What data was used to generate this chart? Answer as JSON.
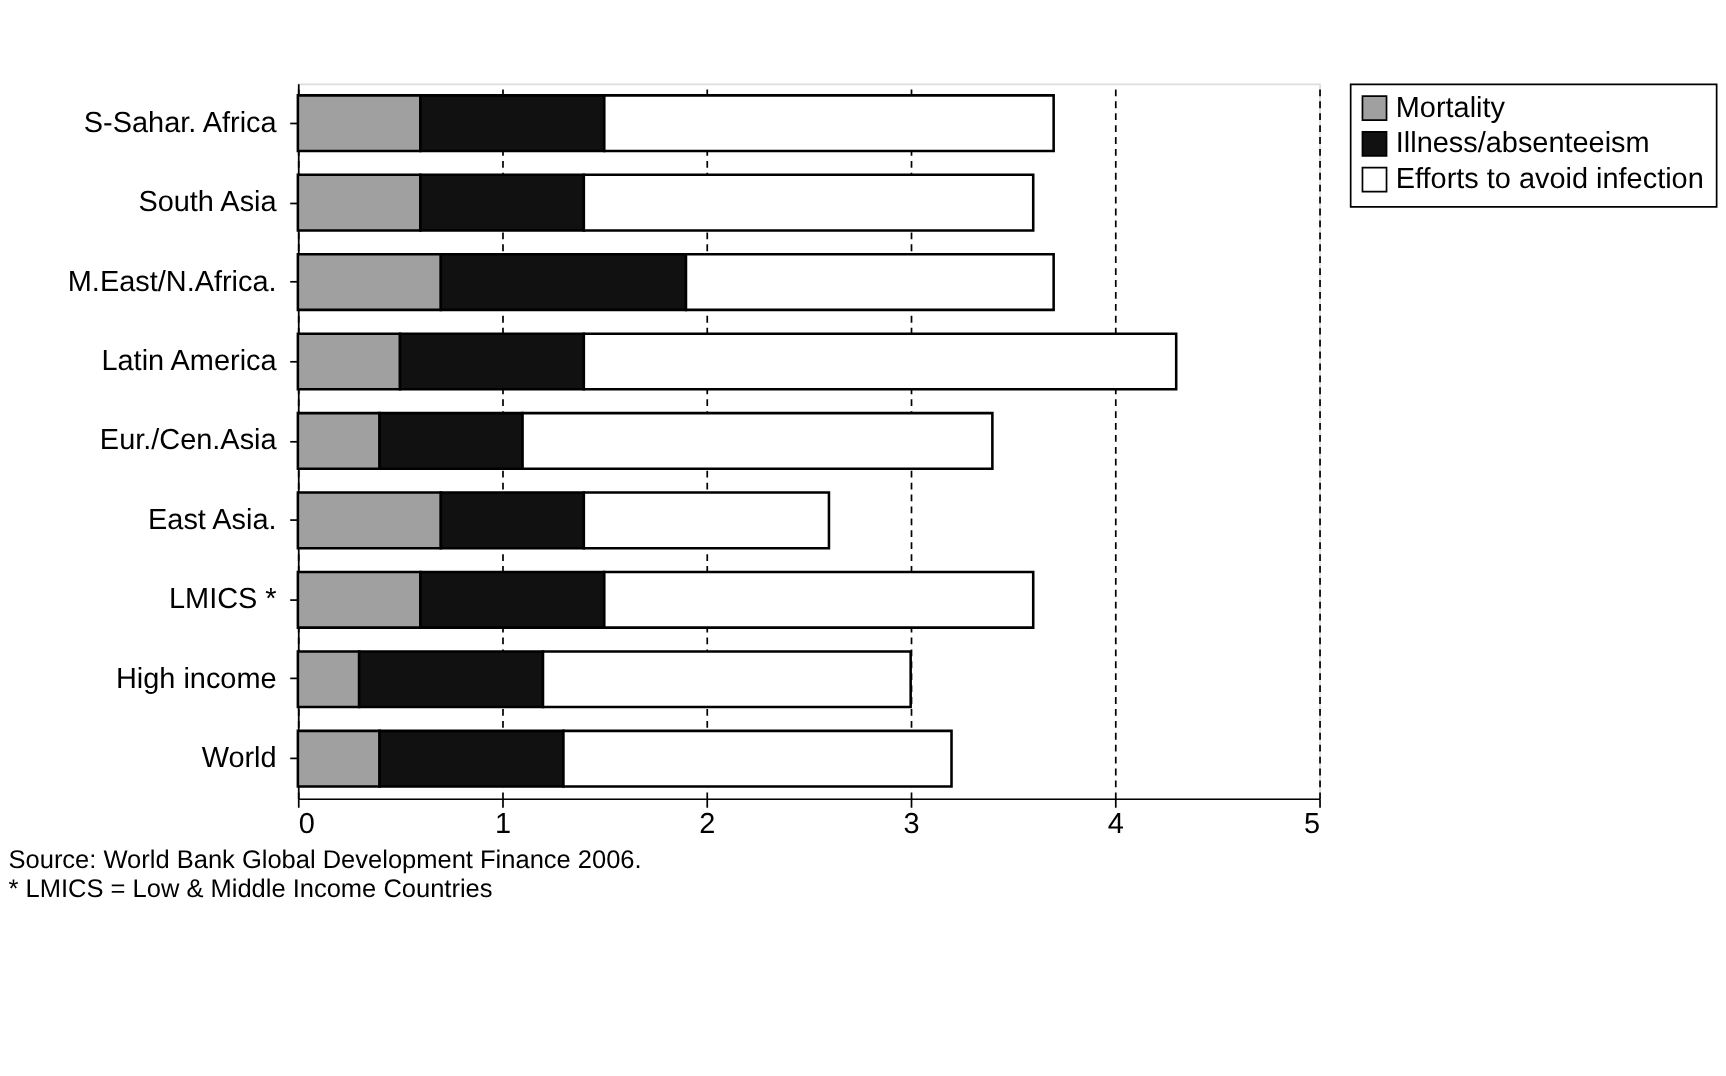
{
  "chart_data": {
    "type": "bar",
    "orientation": "horizontal",
    "stacked": true,
    "categories": [
      "S-Sahar. Africa",
      "South Asia",
      "M.East/N.Africa.",
      "Latin America",
      "Eur./Cen.Asia",
      "East Asia.",
      "LMICS *",
      "High income",
      "World"
    ],
    "series": [
      {
        "name": "Mortality",
        "color": "#a0a0a0",
        "values": [
          0.6,
          0.6,
          0.7,
          0.5,
          0.4,
          0.7,
          0.6,
          0.3,
          0.4
        ]
      },
      {
        "name": "Illness/absenteeism",
        "color": "#111111",
        "values": [
          0.9,
          0.8,
          1.2,
          0.9,
          0.7,
          0.7,
          0.9,
          0.9,
          0.9
        ]
      },
      {
        "name": "Efforts to avoid infection",
        "color": "#ffffff",
        "values": [
          2.2,
          2.2,
          1.8,
          2.9,
          2.3,
          1.2,
          2.1,
          1.8,
          1.9
        ]
      }
    ],
    "xlim": [
      0,
      5
    ],
    "xticks": [
      0,
      1,
      2,
      3,
      4,
      5
    ],
    "grid": "x",
    "legend": "right",
    "annotations": [
      "Source:  World Bank Global Development Finance 2006.",
      "* LMICS = Low & Middle Income Countries"
    ]
  }
}
